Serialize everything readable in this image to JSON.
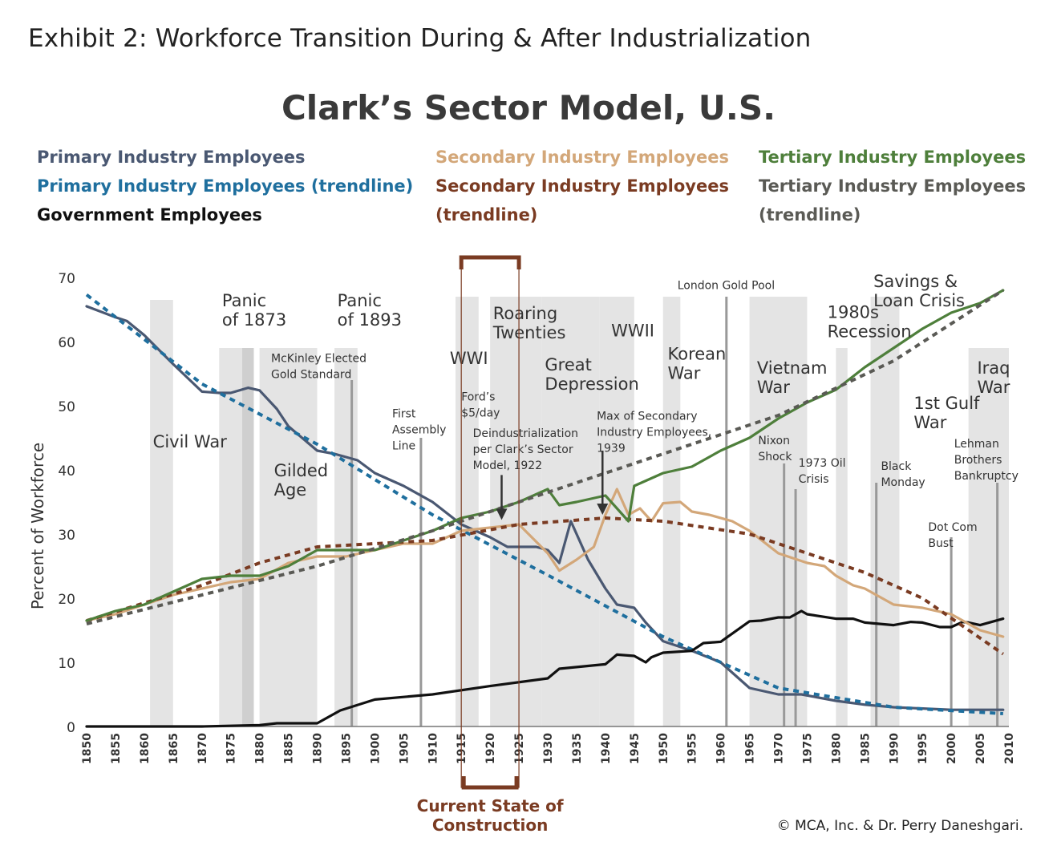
{
  "exhibit_title": "Exhibit 2: Workforce Transition During & After Industrialization",
  "legend": {
    "col1": [
      "Primary Industry Employees",
      "Primary Industry Employees (trendline)",
      "Government Employees"
    ],
    "col2": [
      "Secondary Industry Employees",
      "Secondary Industry Employees",
      "(trendline)"
    ],
    "col3": [
      "Tertiary Industry Employees",
      "Tertiary Industry Employees",
      "(trendline)"
    ]
  },
  "copyright": "© MCA, Inc. & Dr. Perry Daneshgari.",
  "colors": {
    "primary": "#4a5872",
    "primary_trend": "#1f6f9e",
    "government": "#111111",
    "secondary": "#d3a779",
    "secondary_trend": "#7a3b22",
    "tertiary": "#4e7f3b",
    "tertiary_trend": "#5a5a55",
    "band": "#e4e4e4",
    "event_line": "#999999",
    "construction": "#7a3b22"
  },
  "chart_data": {
    "type": "line",
    "title": "Clark’s Sector Model, U.S.",
    "xlabel": "",
    "ylabel": "Percent of Workforce",
    "xlim": [
      1850,
      2010
    ],
    "ylim": [
      0,
      70
    ],
    "x_ticks": [
      1850,
      1855,
      1860,
      1865,
      1870,
      1875,
      1880,
      1885,
      1890,
      1895,
      1900,
      1905,
      1910,
      1915,
      1920,
      1925,
      1930,
      1935,
      1940,
      1945,
      1950,
      1955,
      1960,
      1965,
      1970,
      1975,
      1980,
      1985,
      1990,
      1995,
      2000,
      2005,
      2010
    ],
    "y_ticks": [
      0,
      10,
      20,
      30,
      40,
      50,
      60,
      70
    ],
    "grid": false,
    "series": [
      {
        "name": "Primary Industry Employees",
        "color_key": "primary",
        "style": "solid",
        "x": [
          1850,
          1855,
          1857,
          1860,
          1865,
          1870,
          1873,
          1875,
          1878,
          1880,
          1883,
          1885,
          1890,
          1893,
          1897,
          1900,
          1905,
          1910,
          1915,
          1920,
          1923,
          1928,
          1930,
          1932,
          1934,
          1937,
          1940,
          1942,
          1945,
          1947,
          1950,
          1955,
          1960,
          1965,
          1970,
          1974,
          1980,
          1985,
          1990,
          2000,
          2009
        ],
        "y": [
          65.5,
          63.8,
          63.2,
          61,
          56.5,
          52.2,
          52,
          52,
          52.8,
          52.4,
          49.5,
          46.8,
          43,
          42.5,
          41.5,
          39.5,
          37.5,
          35,
          31.5,
          29.5,
          28,
          28,
          27.5,
          25.5,
          32,
          26,
          21.5,
          19,
          18.5,
          16.2,
          13.3,
          11.8,
          10,
          6,
          5,
          5,
          4,
          3.4,
          3,
          2.6,
          2.6
        ]
      },
      {
        "name": "Primary Industry Employees (trendline)",
        "color_key": "primary_trend",
        "style": "dashed",
        "x": [
          1850,
          1870,
          1890,
          1910,
          1930,
          1950,
          1970,
          1990,
          2009
        ],
        "y": [
          67.3,
          53.4,
          44,
          33,
          23.6,
          14,
          6,
          3,
          2
        ]
      },
      {
        "name": "Government Employees",
        "color_key": "government",
        "style": "solid",
        "x": [
          1850,
          1855,
          1860,
          1870,
          1880,
          1883,
          1890,
          1894,
          1900,
          1910,
          1920,
          1930,
          1932,
          1940,
          1942,
          1945,
          1947,
          1948,
          1950,
          1955,
          1957,
          1960,
          1965,
          1967,
          1970,
          1972,
          1974,
          1975,
          1980,
          1983,
          1985,
          1990,
          1993,
          1995,
          1998,
          2000,
          2002,
          2003,
          2005,
          2009
        ],
        "y": [
          0,
          0,
          0,
          0,
          0.2,
          0.5,
          0.5,
          2.5,
          4.2,
          5,
          6.3,
          7.5,
          9,
          9.7,
          11.2,
          11,
          10,
          10.8,
          11.5,
          11.8,
          13,
          13.2,
          16.4,
          16.5,
          17,
          17,
          18,
          17.5,
          16.8,
          16.8,
          16.2,
          15.8,
          16.3,
          16.2,
          15.5,
          15.5,
          16.3,
          16.2,
          15.8,
          16.8
        ]
      },
      {
        "name": "Secondary Industry Employees",
        "color_key": "secondary",
        "style": "solid",
        "x": [
          1850,
          1855,
          1860,
          1865,
          1870,
          1875,
          1880,
          1885,
          1890,
          1895,
          1900,
          1905,
          1910,
          1915,
          1920,
          1925,
          1930,
          1932,
          1935,
          1938,
          1940,
          1942,
          1944,
          1946,
          1948,
          1950,
          1953,
          1955,
          1958,
          1962,
          1965,
          1970,
          1975,
          1978,
          1980,
          1983,
          1985,
          1990,
          1995,
          2000,
          2003,
          2005,
          2009
        ],
        "y": [
          16.5,
          17.5,
          19,
          20.5,
          21.5,
          22.5,
          23,
          25.5,
          26.5,
          26.5,
          27.5,
          28.5,
          28.5,
          30.5,
          31,
          31.5,
          27,
          24.3,
          26,
          28,
          33,
          37,
          33,
          34,
          32,
          34.8,
          35,
          33.5,
          33,
          32,
          30.5,
          27,
          25.5,
          25,
          23.5,
          22,
          21.5,
          19,
          18.5,
          17.5,
          16,
          15,
          14
        ]
      },
      {
        "name": "Secondary Industry Employees (trendline)",
        "color_key": "secondary_trend",
        "style": "dashed",
        "x": [
          1850,
          1870,
          1880,
          1890,
          1910,
          1925,
          1940,
          1950,
          1965,
          1975,
          1985,
          1995,
          2009
        ],
        "y": [
          16.5,
          22,
          25.5,
          28,
          29,
          31.5,
          32.5,
          32,
          30,
          27,
          24,
          20,
          11.3
        ]
      },
      {
        "name": "Tertiary Industry Employees",
        "color_key": "tertiary",
        "style": "solid",
        "x": [
          1850,
          1855,
          1860,
          1865,
          1870,
          1875,
          1880,
          1885,
          1890,
          1895,
          1900,
          1905,
          1910,
          1915,
          1920,
          1925,
          1930,
          1932,
          1935,
          1940,
          1942,
          1944,
          1945,
          1950,
          1955,
          1960,
          1965,
          1970,
          1975,
          1980,
          1985,
          1990,
          1995,
          2000,
          2005,
          2009
        ],
        "y": [
          16.5,
          18,
          19,
          21,
          23,
          23.5,
          23.5,
          25,
          27.5,
          27.5,
          27.5,
          29,
          30.5,
          32.5,
          33.5,
          35,
          37,
          34.5,
          35,
          36,
          34,
          32,
          37.5,
          39.5,
          40.5,
          43,
          45,
          48,
          50.5,
          52.5,
          56,
          59,
          62,
          64.5,
          66,
          68
        ]
      },
      {
        "name": "Tertiary Industry Employees (trendline)",
        "color_key": "tertiary_trend",
        "style": "dashed",
        "x": [
          1850,
          1870,
          1890,
          1910,
          1930,
          1950,
          1970,
          1990,
          2009
        ],
        "y": [
          16,
          20.5,
          25,
          30.5,
          36.5,
          42.5,
          48.5,
          57,
          68
        ]
      }
    ],
    "bands": [
      {
        "label": "Civil War",
        "x0": 1861,
        "x1": 1865
      },
      {
        "label": "Panic of 1873",
        "x0": 1873,
        "x1": 1879
      },
      {
        "label": "Gilded Age",
        "x0": 1880,
        "x1": 1890
      },
      {
        "label": "Panic of 1893",
        "x0": 1893,
        "x1": 1897
      },
      {
        "label": "WWI",
        "x0": 1914,
        "x1": 1918
      },
      {
        "label": "Roaring Twenties",
        "x0": 1920,
        "x1": 1929
      },
      {
        "label": "Great Depression",
        "x0": 1929,
        "x1": 1939
      },
      {
        "label": "WWII",
        "x0": 1939,
        "x1": 1945
      },
      {
        "label": "Korean War",
        "x0": 1950,
        "x1": 1953
      },
      {
        "label": "Vietnam War",
        "x0": 1965,
        "x1": 1975
      },
      {
        "label": "1980s Recession",
        "x0": 1980,
        "x1": 1982
      },
      {
        "label": "Savings & Loan Crisis",
        "x0": 1986,
        "x1": 1991
      },
      {
        "label": "Iraq War",
        "x0": 2003,
        "x1": 2010
      }
    ],
    "event_lines": [
      {
        "label": "McKinley Elected Gold Standard",
        "x": 1896,
        "y_top": 54
      },
      {
        "label": "First Assembly Line",
        "x": 1908,
        "y_top": 45
      },
      {
        "label": "London Gold Pool",
        "x": 1961,
        "y_top": 67
      },
      {
        "label": "Nixon Shock",
        "x": 1971,
        "y_top": 41
      },
      {
        "label": "1973 Oil Crisis",
        "x": 1973,
        "y_top": 37
      },
      {
        "label": "Black Monday",
        "x": 1987,
        "y_top": 38
      },
      {
        "label": "Dot Com Bust",
        "x": 2000,
        "y_top": 29.5
      },
      {
        "label": "Lehman Brothers Bankruptcy",
        "x": 2008,
        "y_top": 38
      }
    ],
    "annotations": [
      {
        "label": "Ford’s $5/day",
        "x": 1914
      },
      {
        "label": "Deindustrialization per Clark’s Sector Model, 1922",
        "x": 1922
      },
      {
        "label": "Max of Secondary Industry Employees, 1939",
        "x": 1939
      }
    ],
    "highlight": {
      "label": "Current State of Construction",
      "x0": 1915,
      "x1": 1925
    }
  }
}
